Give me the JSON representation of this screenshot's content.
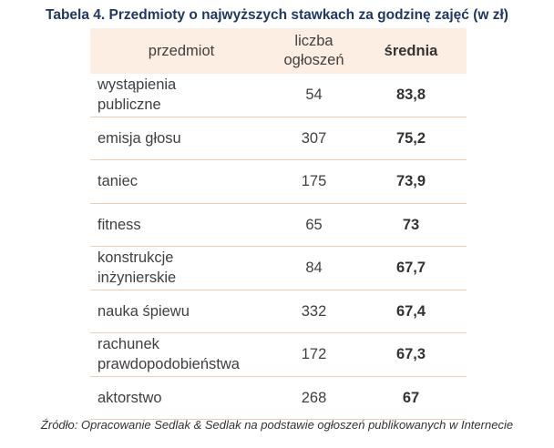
{
  "title": "Tabela 4. Przedmioty o najwyższych stawkach za godzinę zajęć (w zł)",
  "table": {
    "headers": {
      "name": "przedmiot",
      "count_line1": "liczba",
      "count_line2": "ogłoszeń",
      "avg": "średnia"
    },
    "rows": [
      {
        "name_line1": "wystąpienia",
        "name_line2": "publiczne",
        "count": "54",
        "avg": "83,8"
      },
      {
        "name_line1": "emisja głosu",
        "name_line2": "",
        "count": "307",
        "avg": "75,2"
      },
      {
        "name_line1": "taniec",
        "name_line2": "",
        "count": "175",
        "avg": "73,9"
      },
      {
        "name_line1": "fitness",
        "name_line2": "",
        "count": "65",
        "avg": "73"
      },
      {
        "name_line1": "konstrukcje",
        "name_line2": "inżynierskie",
        "count": "84",
        "avg": "67,7"
      },
      {
        "name_line1": "nauka śpiewu",
        "name_line2": "",
        "count": "332",
        "avg": "67,4"
      },
      {
        "name_line1": "rachunek",
        "name_line2": "prawdopodobieństwa",
        "count": "172",
        "avg": "67,3"
      },
      {
        "name_line1": "aktorstwo",
        "name_line2": "",
        "count": "268",
        "avg": "67"
      }
    ]
  },
  "source": "Źródło: Opracowanie Sedlak & Sedlak na podstawie ogłoszeń publikowanych w Internecie"
}
